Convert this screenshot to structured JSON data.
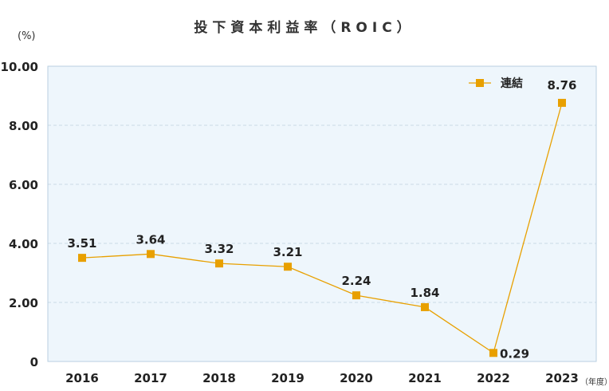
{
  "chart_data": {
    "type": "line",
    "title": "投下資本利益率（ROIC）",
    "y_unit": "(%)",
    "x_unit": "（年度）",
    "categories": [
      "2016",
      "2017",
      "2018",
      "2019",
      "2020",
      "2021",
      "2022",
      "2023"
    ],
    "series": [
      {
        "name": "連結",
        "values": [
          3.51,
          3.64,
          3.32,
          3.21,
          2.24,
          1.84,
          0.29,
          8.76
        ],
        "labels": [
          "3.51",
          "3.64",
          "3.32",
          "3.21",
          "2.24",
          "1.84",
          "0.29",
          "8.76"
        ],
        "color": "#e8a000"
      }
    ],
    "ylim": [
      0,
      10
    ],
    "yticks": [
      0,
      2,
      4,
      6,
      8,
      10
    ],
    "ytick_labels": [
      "0",
      "2.00",
      "4.00",
      "6.00",
      "8.00",
      "10.00"
    ],
    "grid": true,
    "legend": "top-right",
    "plot_bg": "#eef6fc",
    "grid_color": "#c9d9e6"
  }
}
